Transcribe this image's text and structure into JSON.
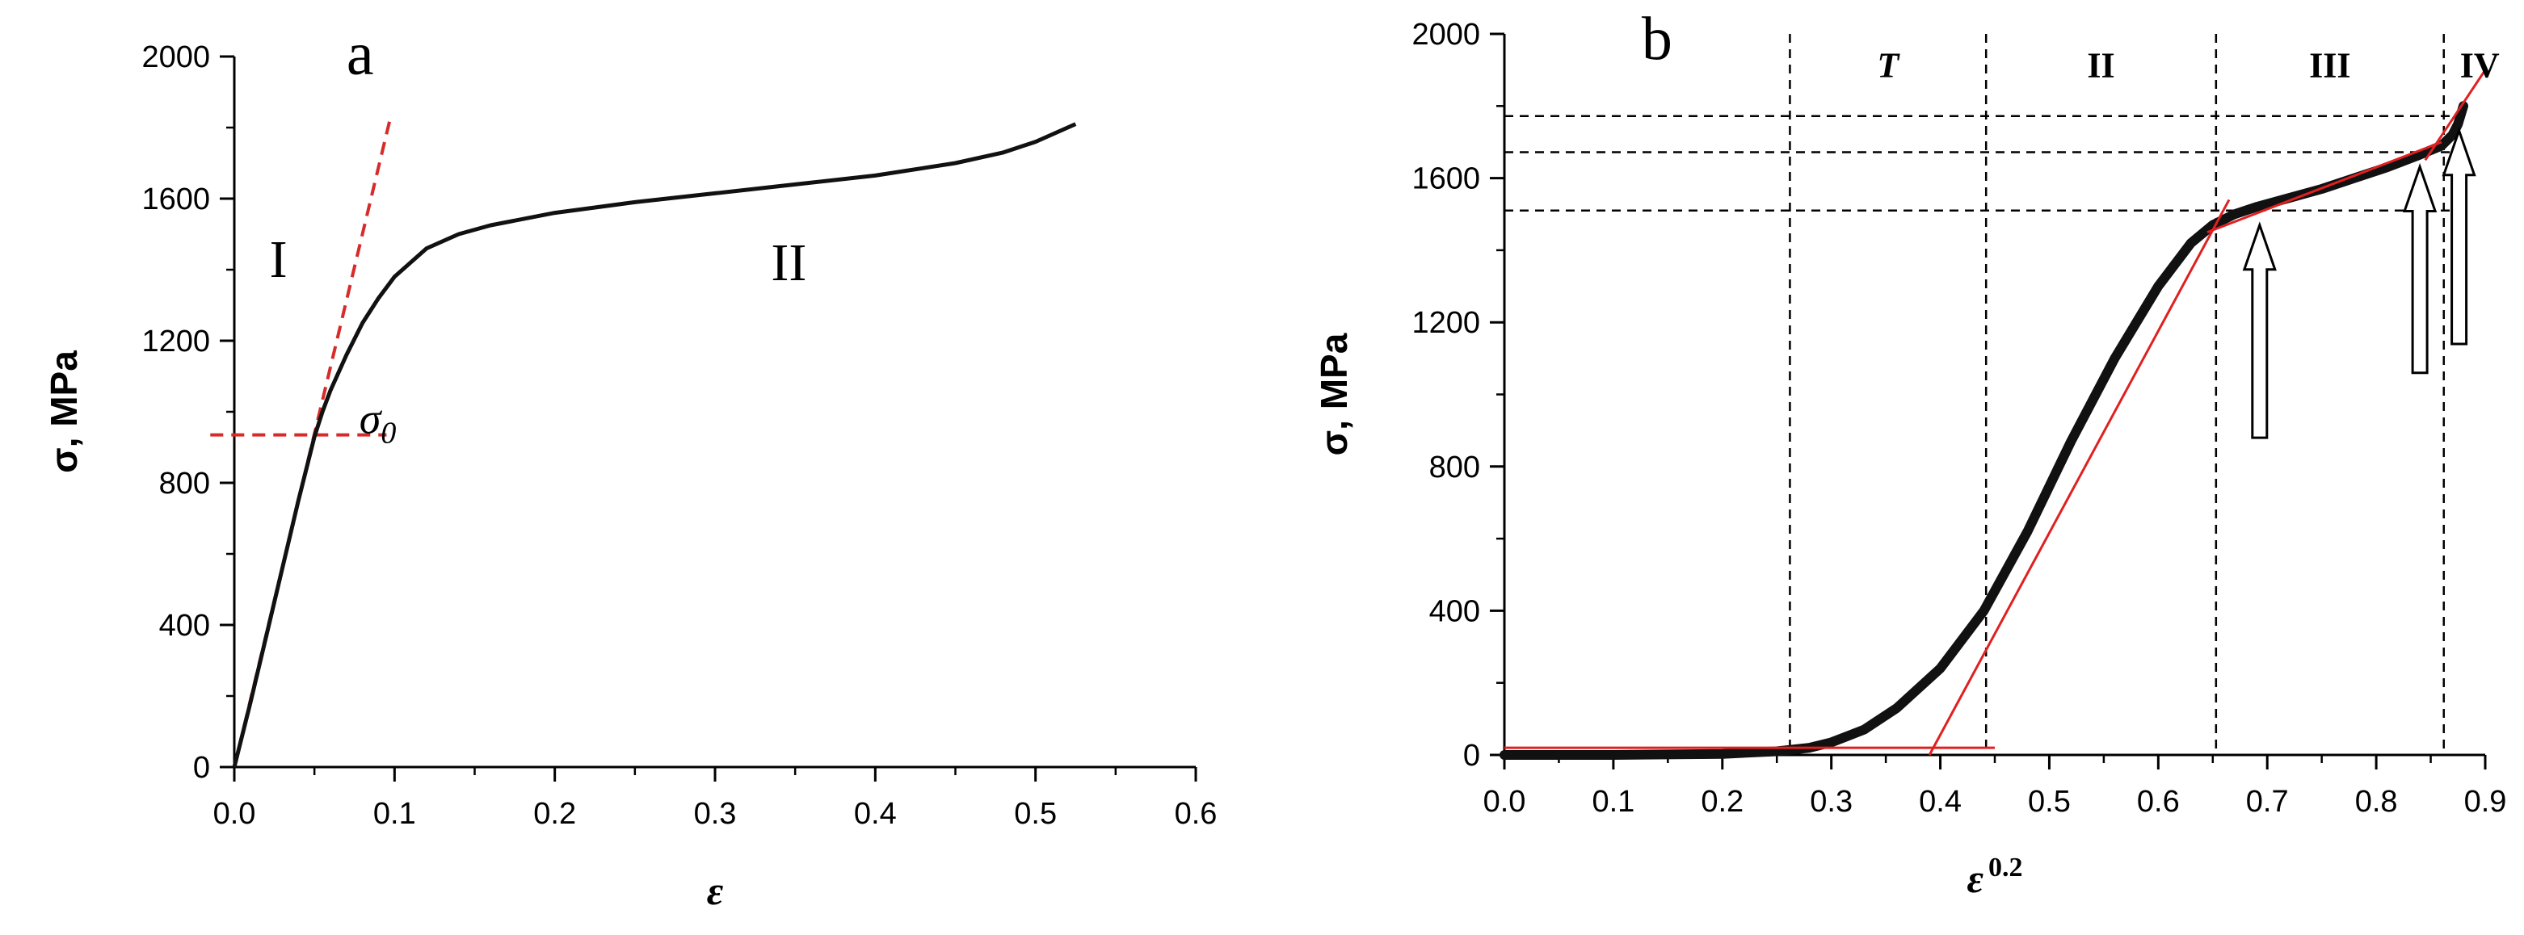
{
  "chart_data": [
    {
      "panel": "a",
      "type": "line",
      "xlabel": "ε",
      "ylabel": "σ, MPa",
      "xlim": [
        0,
        0.6
      ],
      "ylim": [
        0,
        2000
      ],
      "xticks": [
        "0.0",
        "0.1",
        "0.2",
        "0.3",
        "0.4",
        "0.5",
        "0.6"
      ],
      "yticks": [
        "0",
        "400",
        "800",
        "1200",
        "1600",
        "2000"
      ],
      "curve": {
        "x": [
          0,
          0.01,
          0.02,
          0.03,
          0.04,
          0.05,
          0.055,
          0.06,
          0.07,
          0.08,
          0.09,
          0.1,
          0.12,
          0.14,
          0.16,
          0.2,
          0.25,
          0.3,
          0.35,
          0.4,
          0.45,
          0.48,
          0.5,
          0.525
        ],
        "y": [
          0,
          180,
          370,
          560,
          750,
          930,
          1000,
          1060,
          1160,
          1250,
          1320,
          1380,
          1460,
          1500,
          1525,
          1560,
          1590,
          1615,
          1640,
          1665,
          1700,
          1730,
          1760,
          1810
        ]
      },
      "fit_lines": [
        {
          "name": "elastic-fit",
          "x": [
            0,
            0.097
          ],
          "y": [
            0,
            1820
          ],
          "style": "dashed"
        },
        {
          "name": "sigma0-level",
          "x": [
            -0.015,
            0.095
          ],
          "y": [
            935,
            935
          ],
          "style": "dashed"
        }
      ],
      "annotations": [
        {
          "text": "a",
          "x": 0.07,
          "y": 1950
        },
        {
          "text": "I",
          "x": 0.022,
          "y": 1380
        },
        {
          "text": "II",
          "x": 0.335,
          "y": 1370
        },
        {
          "text": "σ",
          "subscript": "0",
          "x": 0.078,
          "y": 940
        }
      ]
    },
    {
      "panel": "b",
      "type": "line",
      "xlabel": "ε",
      "xlabel_superscript": "0.2",
      "ylabel": "σ, MPa",
      "xlim": [
        0,
        0.9
      ],
      "ylim": [
        0,
        2000
      ],
      "xticks": [
        "0.0",
        "0.1",
        "0.2",
        "0.3",
        "0.4",
        "0.5",
        "0.6",
        "0.7",
        "0.8",
        "0.9"
      ],
      "yticks": [
        "0",
        "400",
        "800",
        "1200",
        "1600",
        "2000"
      ],
      "curve": {
        "x": [
          0,
          0.1,
          0.2,
          0.25,
          0.28,
          0.3,
          0.33,
          0.36,
          0.4,
          0.44,
          0.48,
          0.52,
          0.56,
          0.6,
          0.63,
          0.65,
          0.67,
          0.69,
          0.72,
          0.75,
          0.78,
          0.81,
          0.84,
          0.86,
          0.87,
          0.875,
          0.88
        ],
        "y": [
          0,
          0,
          3,
          10,
          20,
          35,
          70,
          130,
          240,
          400,
          620,
          870,
          1100,
          1300,
          1420,
          1470,
          1500,
          1520,
          1545,
          1570,
          1600,
          1630,
          1665,
          1690,
          1720,
          1750,
          1800
        ]
      },
      "fit_lines": [
        {
          "name": "stage-T-baseline",
          "x": [
            0,
            0.45
          ],
          "y": [
            20,
            20
          ]
        },
        {
          "name": "stage-II-tangent",
          "x": [
            0.39,
            0.665
          ],
          "y": [
            0,
            1540
          ]
        },
        {
          "name": "stage-III-fit",
          "x": [
            0.645,
            0.86
          ],
          "y": [
            1450,
            1700
          ]
        },
        {
          "name": "stage-IV-fit",
          "x": [
            0.845,
            0.9
          ],
          "y": [
            1650,
            1900
          ]
        }
      ],
      "reference_lines": {
        "vertical_x": [
          0.262,
          0.442,
          0.653,
          0.862
        ],
        "horizontal_y": [
          1510,
          1672,
          1772
        ]
      },
      "stage_labels": [
        "T",
        "II",
        "III",
        "IV"
      ],
      "arrows_at_x": [
        0.693,
        0.84,
        0.876
      ],
      "annotations": [
        {
          "text": "b",
          "x": 0.14,
          "y": 1930
        }
      ]
    }
  ]
}
